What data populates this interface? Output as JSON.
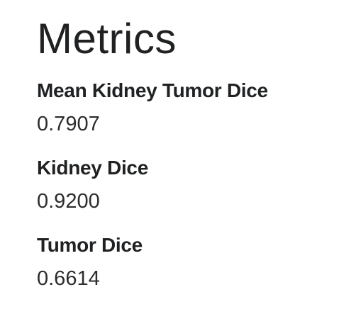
{
  "page": {
    "title": "Metrics"
  },
  "metrics": [
    {
      "label": "Mean Kidney Tumor Dice",
      "value": "0.7907"
    },
    {
      "label": "Kidney Dice",
      "value": "0.9200"
    },
    {
      "label": "Tumor Dice",
      "value": "0.6614"
    }
  ]
}
